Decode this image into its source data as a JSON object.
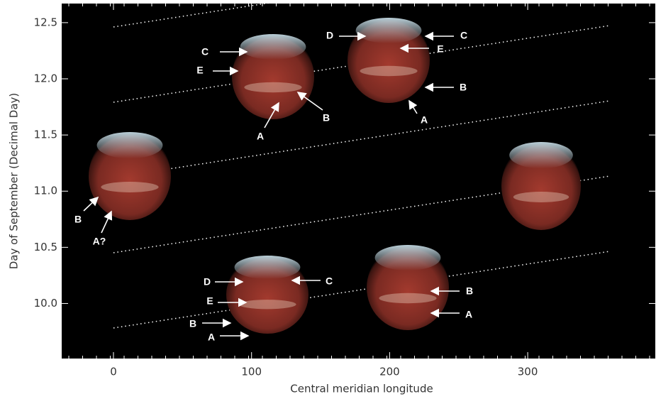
{
  "chart_data": {
    "type": "image",
    "xlabel": "Central meridian longitude",
    "ylabel": "Day of September (Decimal Day)",
    "xlim": [
      -37.5,
      392.4
    ],
    "ylim": [
      9.51,
      12.67
    ],
    "xticks": [
      0,
      100,
      200,
      300
    ],
    "yticks": [
      {
        "value": 10,
        "label": "10.0"
      },
      10.5,
      {
        "value": 11,
        "label": "11.0"
      },
      11.5,
      {
        "value": 12,
        "label": "12.0"
      },
      12.5
    ],
    "annotations": [
      "C",
      "E",
      "A",
      "B",
      "D",
      "C",
      "E",
      "B",
      "A",
      "B",
      "A?",
      "D",
      "C",
      "E",
      "B",
      "A",
      "B",
      "A"
    ]
  }
}
